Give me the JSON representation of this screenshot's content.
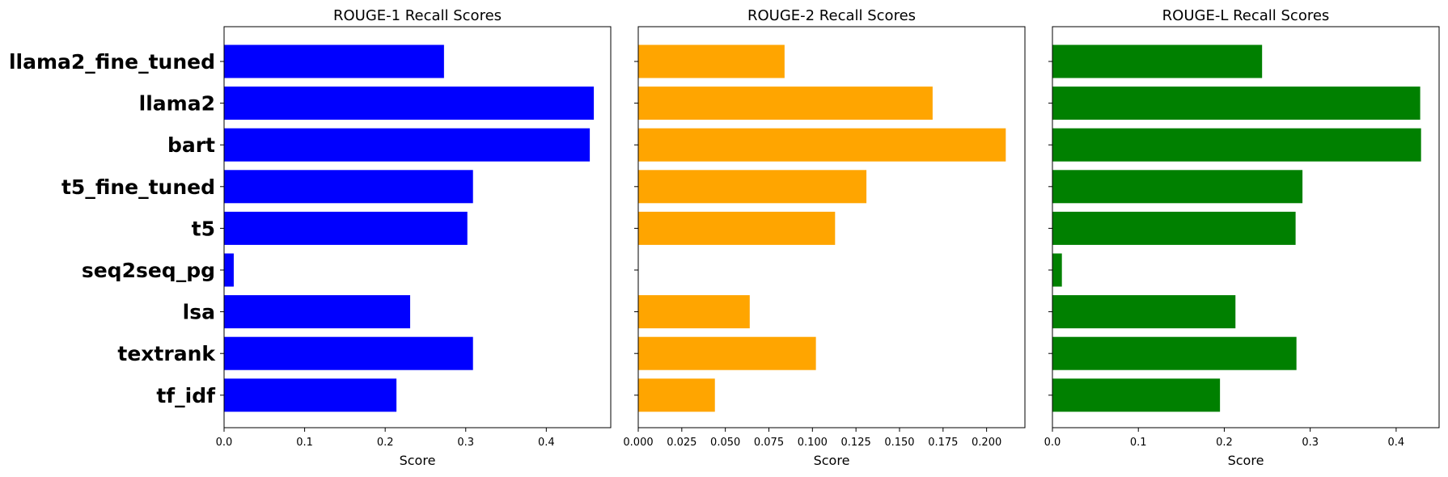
{
  "chart_data": [
    {
      "type": "bar",
      "orientation": "horizontal",
      "title": "ROUGE-1 Recall Scores",
      "xlabel": "Score",
      "ylabel": "",
      "color": "#0000ff",
      "categories": [
        "llama2_fine_tuned",
        "llama2",
        "bart",
        "t5_fine_tuned",
        "t5",
        "seq2seq_pg",
        "lsa",
        "textrank",
        "tf_idf"
      ],
      "values": [
        0.273,
        0.459,
        0.454,
        0.309,
        0.302,
        0.012,
        0.231,
        0.309,
        0.214
      ],
      "xlim": [
        0,
        0.48
      ],
      "xticks": [
        "0.0",
        "0.1",
        "0.2",
        "0.3",
        "0.4"
      ],
      "xtick_values": [
        0,
        0.1,
        0.2,
        0.3,
        0.4
      ],
      "show_category_labels": true,
      "grid": false
    },
    {
      "type": "bar",
      "orientation": "horizontal",
      "title": "ROUGE-2 Recall Scores",
      "xlabel": "Score",
      "ylabel": "",
      "color": "#ffa500",
      "categories": [
        "llama2_fine_tuned",
        "llama2",
        "bart",
        "t5_fine_tuned",
        "t5",
        "seq2seq_pg",
        "lsa",
        "textrank",
        "tf_idf"
      ],
      "values": [
        0.084,
        0.169,
        0.211,
        0.131,
        0.113,
        0.0,
        0.064,
        0.102,
        0.044
      ],
      "xlim": [
        0,
        0.222
      ],
      "xticks": [
        "0.000",
        "0.025",
        "0.050",
        "0.075",
        "0.100",
        "0.125",
        "0.150",
        "0.175",
        "0.200"
      ],
      "xtick_values": [
        0,
        0.025,
        0.05,
        0.075,
        0.1,
        0.125,
        0.15,
        0.175,
        0.2
      ],
      "show_category_labels": false,
      "grid": false
    },
    {
      "type": "bar",
      "orientation": "horizontal",
      "title": "ROUGE-L Recall Scores",
      "xlabel": "Score",
      "ylabel": "",
      "color": "#008000",
      "categories": [
        "llama2_fine_tuned",
        "llama2",
        "bart",
        "t5_fine_tuned",
        "t5",
        "seq2seq_pg",
        "lsa",
        "textrank",
        "tf_idf"
      ],
      "values": [
        0.244,
        0.428,
        0.429,
        0.291,
        0.283,
        0.011,
        0.213,
        0.284,
        0.195
      ],
      "xlim": [
        0,
        0.45
      ],
      "xticks": [
        "0.0",
        "0.1",
        "0.2",
        "0.3",
        "0.4"
      ],
      "xtick_values": [
        0,
        0.1,
        0.2,
        0.3,
        0.4
      ],
      "show_category_labels": false,
      "grid": false
    }
  ]
}
